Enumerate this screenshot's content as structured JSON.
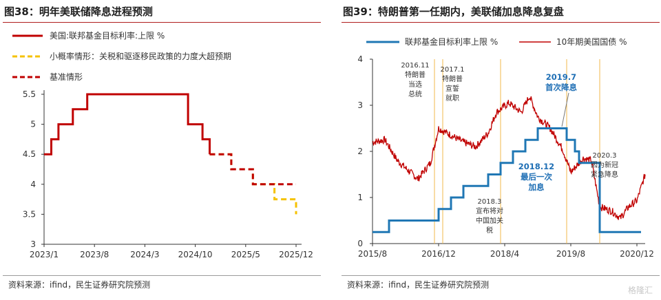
{
  "left": {
    "title": "图38：明年美联储降息进程预测",
    "source": "资料来源：ifind，民生证券研究院预测",
    "legend": [
      {
        "label": "美国:联邦基金目标利率:上限 %",
        "color": "#c00000",
        "style": "solid"
      },
      {
        "label": "小概率情形：关税和驱逐移民政策的力度大超预期",
        "color": "#f5c200",
        "style": "dashed"
      },
      {
        "label": "基准情形",
        "color": "#c00000",
        "style": "dashed"
      }
    ]
  },
  "right": {
    "title": "图39：特朗普第一任期内，美联储加息降息复盘",
    "source": "资料来源：ifind，民生证券研究院预测",
    "legend": [
      {
        "label": "联邦基金目标利率上限 %",
        "color": "#1f77b4"
      },
      {
        "label": "10年期美国国债 %",
        "color": "#c00000"
      }
    ],
    "annotations": [
      {
        "lines": [
          "2016.11",
          "特朗普",
          "当选",
          "总统"
        ]
      },
      {
        "lines": [
          "2017.1",
          "特朗普",
          "宣誓",
          "就职"
        ]
      },
      {
        "lines": [
          "2018.3",
          "宣布将对",
          "中国加关",
          "税"
        ]
      },
      {
        "lines": [
          "2019.7",
          "首次降息"
        ],
        "emphasis": true
      },
      {
        "lines": [
          "2018.12",
          "最后一次",
          "加息"
        ],
        "emphasis": true
      },
      {
        "lines": [
          "2020.3",
          "因为新冠",
          "紧急降息"
        ]
      }
    ]
  },
  "watermark": "格隆汇",
  "chart_data": [
    {
      "type": "line",
      "title": "图38：明年美联储降息进程预测",
      "x_ticks": [
        "2023/1",
        "2023/8",
        "2024/3",
        "2024/10",
        "2025/5",
        "2025/12"
      ],
      "ylim": [
        3,
        5.5
      ],
      "y_ticks": [
        "3",
        "3.5",
        "4",
        "4.5",
        "5",
        "5.5"
      ],
      "series": [
        {
          "name": "美国:联邦基金目标利率:上限 %",
          "points": [
            [
              "2023/1",
              4.5
            ],
            [
              "2023/2",
              4.75
            ],
            [
              "2023/3",
              5.0
            ],
            [
              "2023/5",
              5.25
            ],
            [
              "2023/7",
              5.5
            ],
            [
              "2024/9",
              5.0
            ],
            [
              "2024/11",
              4.75
            ],
            [
              "2024/12",
              4.5
            ]
          ]
        },
        {
          "name": "小概率情形：关税和驱逐移民政策的力度大超预期",
          "points": [
            [
              "2024/12",
              4.5
            ],
            [
              "2025/3",
              4.25
            ],
            [
              "2025/6",
              4.0
            ],
            [
              "2025/9",
              3.75
            ],
            [
              "2025/12",
              3.5
            ]
          ]
        },
        {
          "name": "基准情形",
          "points": [
            [
              "2024/12",
              4.5
            ],
            [
              "2025/3",
              4.25
            ],
            [
              "2025/6",
              4.0
            ],
            [
              "2025/12",
              4.0
            ]
          ]
        }
      ]
    },
    {
      "type": "line",
      "title": "图39：特朗普第一任期内，美联储加息降息复盘",
      "x_ticks": [
        "2015/8",
        "2016/12",
        "2018/4",
        "2019/8",
        "2020/12"
      ],
      "ylim": [
        0,
        4
      ],
      "y_ticks": [
        "0",
        "1",
        "2",
        "3",
        "4"
      ],
      "series": [
        {
          "name": "联邦基金目标利率上限 %",
          "points": [
            [
              "2015/8",
              0.25
            ],
            [
              "2015/12",
              0.5
            ],
            [
              "2016/12",
              0.75
            ],
            [
              "2017/3",
              1.0
            ],
            [
              "2017/6",
              1.25
            ],
            [
              "2017/12",
              1.5
            ],
            [
              "2018/3",
              1.75
            ],
            [
              "2018/6",
              2.0
            ],
            [
              "2018/9",
              2.25
            ],
            [
              "2018/12",
              2.5
            ],
            [
              "2019/7",
              2.25
            ],
            [
              "2019/9",
              2.0
            ],
            [
              "2019/10",
              1.75
            ],
            [
              "2020/3",
              0.25
            ],
            [
              "2021/1",
              0.25
            ]
          ]
        },
        {
          "name": "10年期美国国债 %",
          "points": [
            [
              "2015/8",
              2.2
            ],
            [
              "2015/11",
              2.25
            ],
            [
              "2016/2",
              1.8
            ],
            [
              "2016/7",
              1.4
            ],
            [
              "2016/10",
              1.75
            ],
            [
              "2016/12",
              2.5
            ],
            [
              "2017/6",
              2.2
            ],
            [
              "2017/9",
              2.1
            ],
            [
              "2017/12",
              2.4
            ],
            [
              "2018/2",
              2.85
            ],
            [
              "2018/5",
              3.05
            ],
            [
              "2018/8",
              2.85
            ],
            [
              "2018/10",
              3.2
            ],
            [
              "2018/12",
              2.75
            ],
            [
              "2019/3",
              2.5
            ],
            [
              "2019/6",
              2.05
            ],
            [
              "2019/8",
              1.55
            ],
            [
              "2019/11",
              1.85
            ],
            [
              "2020/1",
              1.8
            ],
            [
              "2020/3",
              0.8
            ],
            [
              "2020/6",
              0.7
            ],
            [
              "2020/8",
              0.55
            ],
            [
              "2020/10",
              0.8
            ],
            [
              "2020/12",
              0.93
            ],
            [
              "2021/2",
              1.5
            ]
          ]
        }
      ]
    }
  ]
}
